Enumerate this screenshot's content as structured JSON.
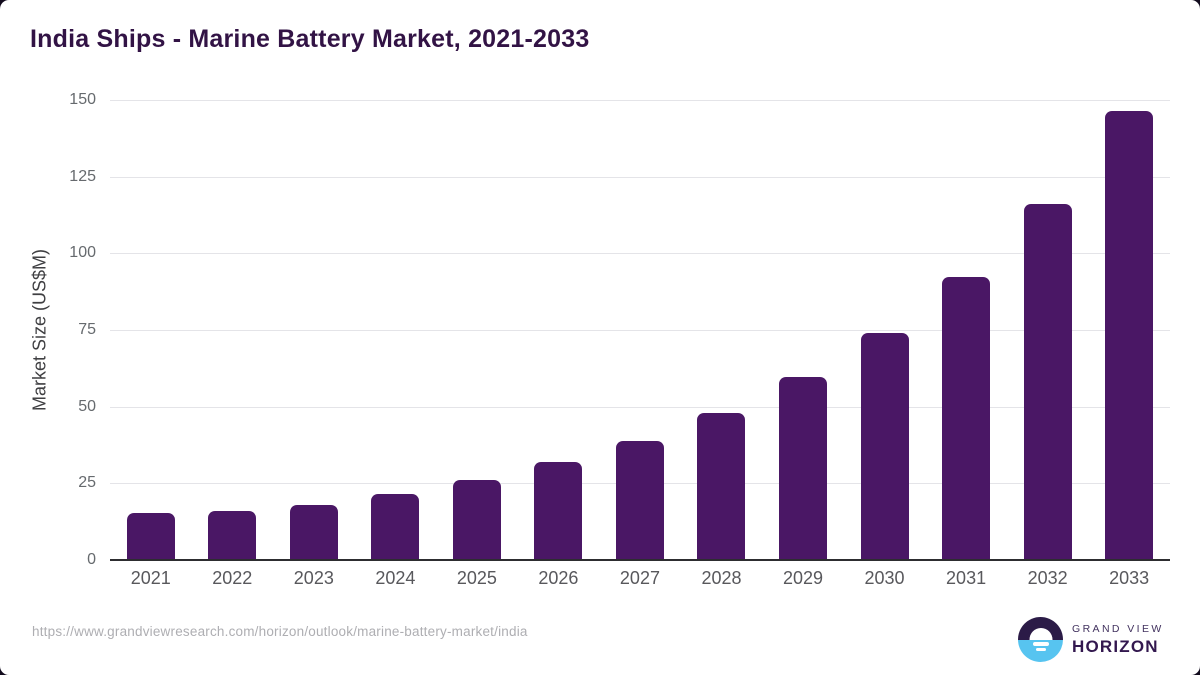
{
  "title": "India Ships - Marine Battery Market, 2021-2033",
  "footer": {
    "source_url": "https://www.grandviewresearch.com/horizon/outlook/marine-battery-market/india"
  },
  "logo": {
    "icon": "grand-view-horizon-sunrise-icon",
    "line1": "GRAND VIEW",
    "line2": "HORIZON"
  },
  "colors": {
    "bar": "#4a1765",
    "title_text": "#321345",
    "axis_label_text": "#58585c",
    "tick_text": "#666a6e",
    "gridline": "#e4e4e8",
    "axis_line": "#2d2d30",
    "page_background_behind_card": "#120b1d",
    "card_background": "#ffffff",
    "logo_navy": "#2b1b47",
    "logo_blue": "#57c4f0"
  },
  "chart_data": {
    "type": "bar",
    "title": "India Ships - Marine Battery Market, 2021-2033",
    "xlabel": "",
    "ylabel": "Market Size (US$M)",
    "categories": [
      "2021",
      "2022",
      "2023",
      "2024",
      "2025",
      "2026",
      "2027",
      "2028",
      "2029",
      "2030",
      "2031",
      "2032",
      "2033"
    ],
    "values": [
      15.4,
      16.0,
      18.1,
      21.6,
      26.2,
      31.8,
      38.9,
      48.0,
      59.6,
      74.1,
      92.4,
      116.0,
      146.3
    ],
    "ylim": [
      0,
      150
    ],
    "yticks": [
      0,
      25,
      50,
      75,
      100,
      125,
      150
    ],
    "grid": true,
    "legend": "none",
    "bar_color": "#4a1765"
  }
}
